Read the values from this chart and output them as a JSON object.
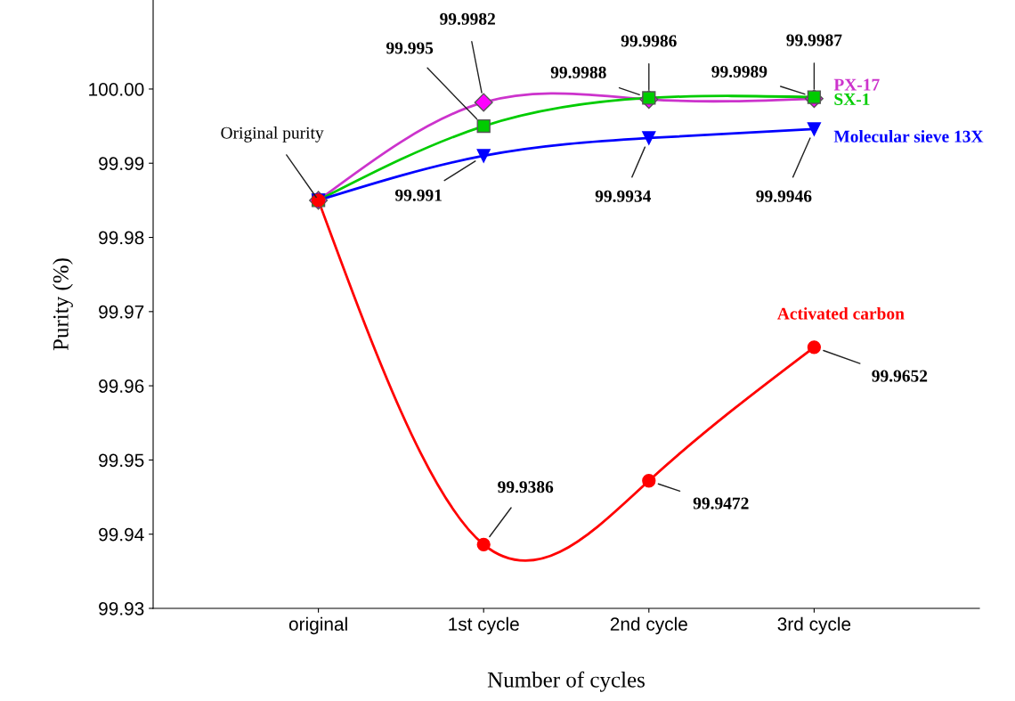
{
  "chart_data": {
    "type": "line",
    "xlabel": "Number of cycles",
    "ylabel": "Purity (%)",
    "categories": [
      "original",
      "1st cycle",
      "2nd cycle",
      "3rd cycle"
    ],
    "ylim": [
      99.93,
      100.012
    ],
    "yticks": [
      {
        "value": 99.93,
        "label": "99.93"
      },
      {
        "value": 99.94,
        "label": "99.94"
      },
      {
        "value": 99.95,
        "label": "99.95"
      },
      {
        "value": 99.96,
        "label": "99.96"
      },
      {
        "value": 99.97,
        "label": "99.97"
      },
      {
        "value": 99.98,
        "label": "99.98"
      },
      {
        "value": 99.99,
        "label": "99.99"
      },
      {
        "value": 100.0,
        "label": "100.00"
      }
    ],
    "grid": false,
    "legend": false,
    "annotations": [
      {
        "text": "Original purity",
        "x": "original",
        "y": 99.985
      }
    ],
    "series": [
      {
        "name": "PX-17",
        "color": "#cc33cc",
        "marker": "diamond",
        "values": [
          99.985,
          99.9982,
          99.9986,
          99.9987
        ],
        "value_labels": [
          null,
          "99.9982",
          "99.9986",
          "99.9987"
        ]
      },
      {
        "name": "SX-1",
        "color": "#00cc00",
        "marker": "square",
        "values": [
          99.985,
          99.995,
          99.9988,
          99.9989
        ],
        "value_labels": [
          null,
          "99.995",
          "99.9988",
          "99.9989"
        ]
      },
      {
        "name": "Molecular sieve 13X",
        "color": "#0000ff",
        "marker": "triangle",
        "values": [
          99.985,
          99.991,
          99.9934,
          99.9946
        ],
        "value_labels": [
          null,
          "99.991",
          "99.9934",
          "99.9946"
        ]
      },
      {
        "name": "Activated carbon",
        "color": "#ff0000",
        "marker": "circle",
        "values": [
          99.985,
          99.9386,
          99.9472,
          99.9652
        ],
        "value_labels": [
          null,
          "99.9386",
          "99.9472",
          "99.9652"
        ]
      }
    ]
  }
}
